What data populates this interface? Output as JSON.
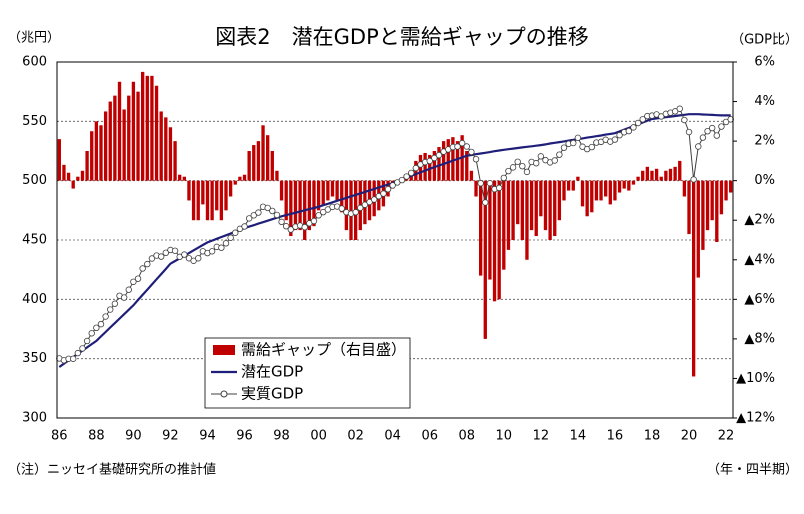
{
  "chart_data": {
    "type": "bar-line",
    "title": "図表2　潜在GDPと需給ギャップの推移",
    "y_label": "（兆円）",
    "y2_label": "（GDP比）",
    "note": "（注）ニッセイ基礎研究所の推計値",
    "x_label": "（年・四半期）",
    "categories": [
      "86",
      null,
      null,
      null,
      null,
      null,
      null,
      null,
      "88",
      null,
      null,
      null,
      null,
      null,
      null,
      null,
      "90",
      null,
      null,
      null,
      null,
      null,
      null,
      null,
      "92",
      null,
      null,
      null,
      null,
      null,
      null,
      null,
      "94",
      null,
      null,
      null,
      null,
      null,
      null,
      null,
      "96",
      null,
      null,
      null,
      null,
      null,
      null,
      null,
      "98",
      null,
      null,
      null,
      null,
      null,
      null,
      null,
      "00",
      null,
      null,
      null,
      null,
      null,
      null,
      null,
      "02",
      null,
      null,
      null,
      null,
      null,
      null,
      null,
      "04",
      null,
      null,
      null,
      null,
      null,
      null,
      null,
      "06",
      null,
      null,
      null,
      null,
      null,
      null,
      null,
      "08",
      null,
      null,
      null,
      null,
      null,
      null,
      null,
      "10",
      null,
      null,
      null,
      null,
      null,
      null,
      null,
      "12",
      null,
      null,
      null,
      null,
      null,
      null,
      null,
      "14",
      null,
      null,
      null,
      null,
      null,
      null,
      null,
      "16",
      null,
      null,
      null,
      null,
      null,
      null,
      null,
      "18",
      null,
      null,
      null,
      null,
      null,
      null,
      null,
      "20",
      null,
      null,
      null,
      null,
      null,
      null,
      null,
      "22",
      null
    ],
    "ylim": [
      300,
      600
    ],
    "yticks": [
      300,
      350,
      400,
      450,
      500,
      550,
      600
    ],
    "y2lim": [
      -12,
      6
    ],
    "y2ticks": [
      {
        "value": -12,
        "label": "▲12%"
      },
      {
        "value": -10,
        "label": "▲10%"
      },
      {
        "value": -8,
        "label": "▲8%"
      },
      {
        "value": -6,
        "label": "▲6%"
      },
      {
        "value": -4,
        "label": "▲4%"
      },
      {
        "value": -2,
        "label": "▲2%"
      },
      {
        "value": 0,
        "label": "0%"
      },
      {
        "value": 2,
        "label": "2%"
      },
      {
        "value": 4,
        "label": "4%"
      },
      {
        "value": 6,
        "label": "6%"
      }
    ],
    "grid": true,
    "series": [
      {
        "name": "需給ギャップ（右目盛）",
        "type": "bar",
        "axis": "y2",
        "color": "#c00000",
        "values": [
          2.1,
          0.8,
          0.4,
          -0.4,
          0.2,
          0.5,
          1.5,
          2.5,
          3.0,
          2.8,
          3.5,
          4.0,
          4.3,
          5.0,
          3.6,
          4.3,
          5.0,
          4.5,
          5.5,
          5.3,
          5.3,
          4.8,
          3.5,
          3.2,
          2.7,
          2.0,
          0.3,
          0.2,
          -1.0,
          -2.0,
          -2.0,
          -1.2,
          -2.0,
          -2.0,
          -1.5,
          -2.0,
          -1.5,
          -0.8,
          -0.2,
          0.2,
          0.3,
          1.5,
          1.8,
          2.0,
          2.8,
          2.3,
          1.5,
          0.5,
          -1.0,
          -2.0,
          -2.8,
          -2.5,
          -2.5,
          -3.0,
          -2.5,
          -2.3,
          -1.5,
          -1.2,
          -1.0,
          -0.8,
          -1.0,
          -1.6,
          -2.5,
          -3.0,
          -3.0,
          -2.5,
          -2.2,
          -2.0,
          -1.8,
          -1.5,
          -1.3,
          -0.8,
          -0.4,
          -0.2,
          -0.1,
          0.2,
          0.5,
          1.0,
          1.3,
          1.4,
          1.3,
          1.5,
          1.7,
          2.0,
          2.1,
          2.2,
          2.0,
          2.3,
          1.5,
          0.5,
          -0.8,
          -4.8,
          -8.0,
          -5.0,
          -6.1,
          -6.0,
          -4.5,
          -3.5,
          -3.0,
          -2.2,
          -3.0,
          -4.0,
          -2.5,
          -2.8,
          -1.8,
          -2.5,
          -3.0,
          -2.8,
          -2.0,
          -1.0,
          -0.5,
          -0.5,
          0.2,
          -1.3,
          -1.8,
          -1.6,
          -1.0,
          -1.0,
          -0.8,
          -1.2,
          -1.0,
          -0.6,
          -0.4,
          -0.5,
          -0.2,
          0.2,
          0.5,
          0.7,
          0.5,
          0.6,
          0.2,
          0.5,
          0.6,
          0.7,
          1.0,
          -0.8,
          -2.7,
          -9.9,
          -4.9,
          -3.5,
          -2.5,
          -2.0,
          -3.1,
          -1.7,
          -1.0,
          -0.6
        ]
      },
      {
        "name": "潜在GDP",
        "type": "line",
        "color": "#1f1f7a",
        "values": [
          343,
          345.8,
          348.5,
          351.3,
          354,
          356.8,
          359.5,
          362.3,
          365,
          368.8,
          372.5,
          376.3,
          380,
          383.8,
          387.5,
          391.3,
          395,
          399.4,
          403.8,
          408.1,
          412.5,
          416.9,
          421.3,
          425.6,
          430,
          432.3,
          434.5,
          436.8,
          439,
          441.3,
          443.5,
          445.8,
          448,
          449.5,
          451,
          452.5,
          454,
          455.5,
          457,
          458.5,
          460,
          461.3,
          462.5,
          463.8,
          465,
          466.3,
          467.5,
          468.8,
          470,
          471,
          472,
          473,
          474,
          475,
          476,
          477,
          478,
          479.3,
          480.5,
          481.8,
          483,
          484.3,
          485.5,
          486.8,
          488,
          489.3,
          490.5,
          491.8,
          493,
          494.3,
          495.5,
          496.8,
          498,
          499.5,
          501,
          502.5,
          504,
          505.5,
          507,
          508.5,
          510,
          511.4,
          512.8,
          514.1,
          515.5,
          516.9,
          518.3,
          519.6,
          521,
          521.6,
          522.3,
          522.9,
          523.5,
          524.1,
          524.8,
          525.4,
          526,
          526.5,
          527,
          527.5,
          528,
          528.5,
          529,
          529.5,
          530,
          530.6,
          531.3,
          531.9,
          532.5,
          533.1,
          533.8,
          534.4,
          535,
          535.6,
          536.3,
          536.9,
          537.5,
          538.1,
          538.8,
          539.4,
          540,
          541.5,
          543,
          544.5,
          546,
          547.5,
          549,
          550.5,
          552,
          552.5,
          553,
          553.5,
          554,
          554.5,
          555,
          555.5,
          556,
          556,
          556,
          555.8,
          555.6,
          555.4,
          555.2,
          555,
          555,
          555
        ]
      },
      {
        "name": "実質GDP",
        "type": "line-marker",
        "color": "#404040",
        "values": [
          350.2,
          348.6,
          349.9,
          349.9,
          354.7,
          358.6,
          364.9,
          371.4,
          376.0,
          379.1,
          385.5,
          391.4,
          396.3,
          403.0,
          401.5,
          408.1,
          414.8,
          417.4,
          426.0,
          429.7,
          434.4,
          436.9,
          436.0,
          439.2,
          441.6,
          440.9,
          435.8,
          437.7,
          434.6,
          432.5,
          434.6,
          440.5,
          439.0,
          440.5,
          444.2,
          443.5,
          447.2,
          451.9,
          456.1,
          459.4,
          461.4,
          468.2,
          470.8,
          473.1,
          478.0,
          477.0,
          474.5,
          471.1,
          465.3,
          461.6,
          458.8,
          461.2,
          462.2,
          460.8,
          464.1,
          466.0,
          470.8,
          473.5,
          475.7,
          477.9,
          478.2,
          476.5,
          473.4,
          472.2,
          473.4,
          477.1,
          479.7,
          482.0,
          484.1,
          486.9,
          489.1,
          492.8,
          496.0,
          498.5,
          500.5,
          503.5,
          506.5,
          510.6,
          513.6,
          515.6,
          516.6,
          519.1,
          521.5,
          524.4,
          526.3,
          528.3,
          528.7,
          531.6,
          528.8,
          524.2,
          518.1,
          497.8,
          481.6,
          497.9,
          492.8,
          493.9,
          502.3,
          508.1,
          511.2,
          515.9,
          512.2,
          507.4,
          515.8,
          514.7,
          520.5,
          517.3,
          515.4,
          517.0,
          521.9,
          527.8,
          531.1,
          531.7,
          536.1,
          528.6,
          526.6,
          528.3,
          532.1,
          532.7,
          534.5,
          532.9,
          534.6,
          538.3,
          540.8,
          541.8,
          544.9,
          548.6,
          551.7,
          554.4,
          554.8,
          555.8,
          554.1,
          556.3,
          557.3,
          558.4,
          560.6,
          551.1,
          541.0,
          501.0,
          528.8,
          536.3,
          541.7,
          544.3,
          538.0,
          545.6,
          549.5,
          551.7
        ]
      }
    ]
  }
}
